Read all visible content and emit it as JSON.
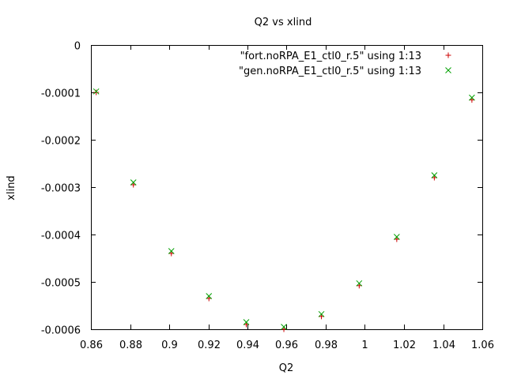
{
  "chart_data": {
    "type": "scatter",
    "title": "Q2 vs xlind",
    "xlabel": "Q2",
    "ylabel": "xlind",
    "xlim": [
      0.86,
      1.06
    ],
    "ylim": [
      -0.0006,
      0
    ],
    "xticks": [
      0.86,
      0.88,
      0.9,
      0.92,
      0.94,
      0.96,
      0.98,
      1.0,
      1.02,
      1.04,
      1.06
    ],
    "xtick_labels": [
      "0.86",
      "0.88",
      "0.9",
      "0.92",
      "0.94",
      "0.96",
      "0.98",
      "1",
      "1.02",
      "1.04",
      "1.06"
    ],
    "yticks": [
      0,
      -0.0001,
      -0.0002,
      -0.0003,
      -0.0004,
      -0.0005,
      -0.0006
    ],
    "ytick_labels": [
      "0",
      "-0.0001",
      "-0.0002",
      "-0.0003",
      "-0.0004",
      "-0.0005",
      "-0.0006"
    ],
    "grid": false,
    "legend_position": "top-right",
    "series": [
      {
        "name": "\"fort.noRPA_E1_ctl0_r.5\" using 1:13",
        "marker": "plus",
        "color": "#cc0000",
        "x": [
          0.8627,
          0.8817,
          0.9011,
          0.9203,
          0.9394,
          0.9586,
          0.9778,
          0.9971,
          1.0163,
          1.0355,
          1.0547
        ],
        "y": [
          -0.0001,
          -0.000295,
          -0.00044,
          -0.000535,
          -0.00059,
          -0.0006,
          -0.000573,
          -0.000508,
          -0.00041,
          -0.00028,
          -0.000116
        ]
      },
      {
        "name": "\"gen.noRPA_E1_ctl0_r.5\" using 1:13",
        "marker": "x",
        "color": "#00a000",
        "x": [
          0.8627,
          0.8817,
          0.9011,
          0.9203,
          0.9394,
          0.9586,
          0.9778,
          0.9971,
          1.0163,
          1.0355,
          1.0547
        ],
        "y": [
          -9.8e-05,
          -0.00029,
          -0.000435,
          -0.00053,
          -0.000585,
          -0.000595,
          -0.000568,
          -0.000503,
          -0.000405,
          -0.000275,
          -0.000111
        ]
      }
    ]
  }
}
